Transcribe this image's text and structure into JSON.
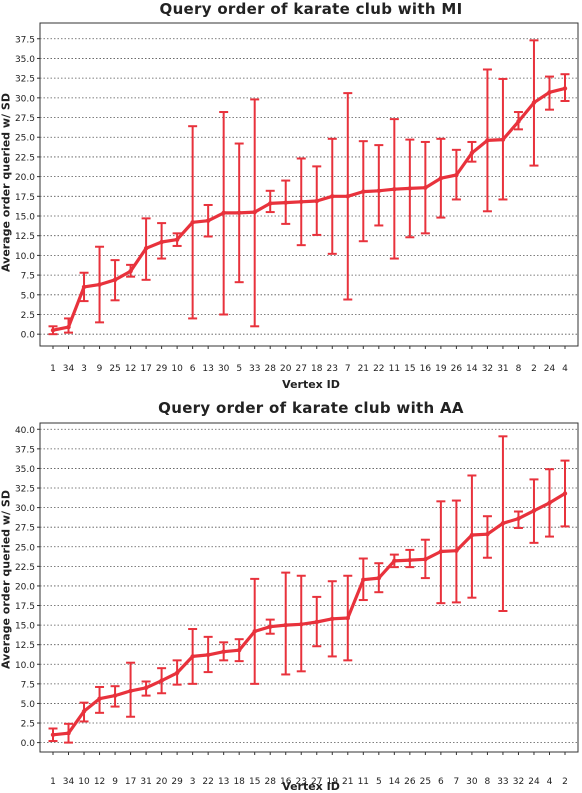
{
  "chart_data": [
    {
      "type": "line",
      "title": "Query order of karate club with MI",
      "xlabel": "Vertex ID",
      "ylabel": "Average order queried w/ SD",
      "ylim": [
        -1.5,
        39.5
      ],
      "yticks": [
        "0.0",
        "2.5",
        "5.0",
        "7.5",
        "10.0",
        "12.5",
        "15.0",
        "17.5",
        "20.0",
        "22.5",
        "25.0",
        "27.5",
        "30.0",
        "32.5",
        "35.0",
        "37.5"
      ],
      "grid": "horizontal-dotted",
      "color": "#e8323c",
      "categories": [
        "1",
        "34",
        "3",
        "9",
        "25",
        "12",
        "17",
        "29",
        "10",
        "6",
        "13",
        "30",
        "5",
        "33",
        "28",
        "20",
        "27",
        "18",
        "23",
        "7",
        "21",
        "22",
        "11",
        "15",
        "16",
        "19",
        "26",
        "14",
        "32",
        "31",
        "8",
        "2",
        "24",
        "4"
      ],
      "series": [
        {
          "values": [
            0.5,
            0.9,
            6.0,
            6.3,
            6.9,
            8.0,
            10.9,
            11.7,
            12.0,
            14.2,
            14.4,
            15.4,
            15.4,
            15.5,
            16.6,
            16.7,
            16.8,
            16.9,
            17.5,
            17.5,
            18.1,
            18.2,
            18.4,
            18.5,
            18.6,
            19.8,
            20.2,
            23.0,
            24.6,
            24.7,
            27.0,
            29.4,
            30.7,
            31.2
          ],
          "sd_low": [
            0.0,
            0.2,
            4.2,
            1.5,
            4.3,
            7.3,
            6.9,
            9.6,
            11.2,
            2.0,
            12.4,
            2.5,
            6.6,
            1.0,
            15.5,
            14.0,
            11.3,
            12.6,
            10.2,
            4.4,
            11.8,
            13.8,
            9.6,
            12.3,
            12.8,
            14.8,
            17.1,
            21.9,
            15.6,
            17.1,
            26.0,
            21.4,
            28.5,
            29.6
          ],
          "sd_high": [
            1.0,
            2.0,
            7.8,
            11.1,
            9.4,
            8.8,
            14.7,
            14.1,
            12.8,
            26.4,
            16.4,
            28.2,
            24.2,
            29.8,
            18.2,
            19.5,
            22.3,
            21.3,
            24.8,
            30.6,
            24.5,
            24.0,
            27.3,
            24.7,
            24.4,
            24.8,
            23.4,
            24.4,
            33.6,
            32.4,
            28.2,
            37.3,
            32.7,
            33.0
          ]
        }
      ]
    },
    {
      "type": "line",
      "title": "Query order of karate club with AA",
      "xlabel": "Vertex ID",
      "ylabel": "Average order queried w/ SD",
      "ylim": [
        -1.2,
        40.8
      ],
      "yticks": [
        "0.0",
        "2.5",
        "5.0",
        "7.5",
        "10.0",
        "12.5",
        "15.0",
        "17.5",
        "20.0",
        "22.5",
        "25.0",
        "27.5",
        "30.0",
        "32.5",
        "35.0",
        "37.5",
        "40.0"
      ],
      "grid": "horizontal-dotted",
      "color": "#e8323c",
      "categories": [
        "1",
        "34",
        "10",
        "12",
        "9",
        "17",
        "31",
        "20",
        "29",
        "3",
        "22",
        "13",
        "18",
        "15",
        "28",
        "16",
        "23",
        "27",
        "19",
        "21",
        "11",
        "5",
        "14",
        "26",
        "25",
        "6",
        "7",
        "30",
        "8",
        "33",
        "32",
        "24",
        "4",
        "2"
      ],
      "series": [
        {
          "values": [
            1.0,
            1.2,
            4.0,
            5.6,
            6.0,
            6.6,
            7.0,
            7.9,
            8.9,
            11.0,
            11.2,
            11.6,
            11.8,
            14.2,
            14.8,
            15.0,
            15.1,
            15.4,
            15.8,
            15.9,
            20.8,
            21.0,
            23.2,
            23.3,
            23.4,
            24.4,
            24.5,
            26.5,
            26.6,
            28.0,
            28.6,
            29.6,
            30.6,
            31.8
          ],
          "sd_low": [
            0.2,
            0.0,
            2.7,
            3.8,
            4.6,
            3.3,
            6.0,
            6.3,
            7.4,
            7.5,
            9.0,
            10.5,
            10.4,
            7.5,
            13.9,
            8.7,
            9.1,
            12.3,
            11.0,
            10.5,
            18.2,
            19.2,
            22.4,
            22.4,
            21.0,
            17.8,
            17.9,
            18.5,
            23.6,
            16.8,
            27.4,
            25.5,
            26.3,
            27.6
          ],
          "sd_high": [
            1.8,
            2.4,
            5.1,
            7.1,
            7.2,
            10.2,
            7.8,
            9.5,
            10.5,
            14.5,
            13.5,
            12.8,
            13.2,
            20.9,
            15.7,
            21.7,
            21.3,
            18.6,
            20.6,
            21.3,
            23.5,
            22.9,
            24.0,
            24.6,
            25.9,
            30.8,
            30.9,
            34.1,
            28.9,
            39.1,
            29.5,
            33.6,
            34.9,
            36.0
          ]
        }
      ]
    }
  ]
}
